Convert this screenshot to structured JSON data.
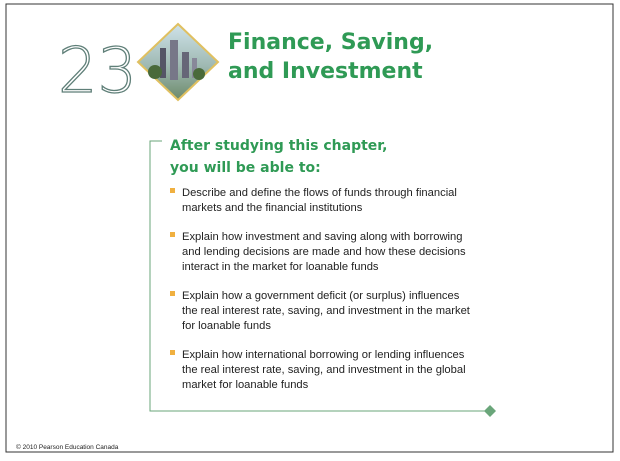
{
  "header": {
    "chapter_number": "23",
    "title_lines": [
      "Finance, Saving,",
      "and Investment"
    ]
  },
  "objectives": {
    "heading_lines": [
      "After studying this chapter,",
      "you will be able to:"
    ],
    "items": [
      [
        "Describe and define the flows of funds through financial",
        "markets and the financial institutions"
      ],
      [
        "Explain how investment and saving along with borrowing",
        "and lending decisions are made and how these decisions",
        "interact in the market for loanable funds"
      ],
      [
        "Explain how a government deficit (or surplus) influences",
        "the real interest rate, saving, and investment in the market",
        "for loanable funds"
      ],
      [
        "Explain how international borrowing or lending influences",
        "the real interest rate, saving, and investment in the global",
        "market for loanable funds"
      ]
    ]
  },
  "footer": {
    "copyright": "© 2010 Pearson Education Canada"
  }
}
